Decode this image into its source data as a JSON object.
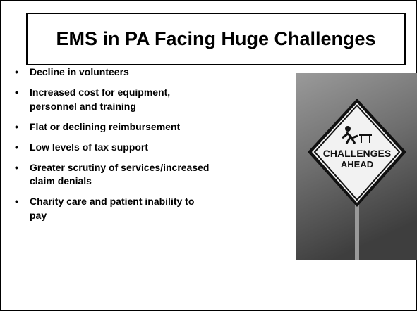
{
  "header": {
    "title": "EMS in PA Facing Huge Challenges"
  },
  "bullets": [
    {
      "lines": [
        "Decline in volunteers"
      ]
    },
    {
      "lines": [
        "Increased cost for equipment,",
        "personnel and training"
      ]
    },
    {
      "lines": [
        "Flat or declining reimbursement"
      ]
    },
    {
      "lines": [
        "Low levels of tax support"
      ]
    },
    {
      "lines": [
        "Greater scrutiny of services/increased",
        "claim denials"
      ]
    },
    {
      "lines": [
        "Charity care and patient inability to",
        "pay"
      ]
    }
  ],
  "image": {
    "sign_text": [
      "CHALLENGES",
      "AHEAD"
    ]
  }
}
